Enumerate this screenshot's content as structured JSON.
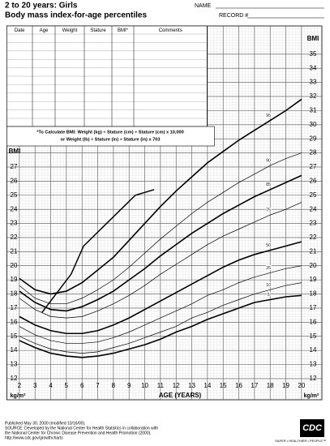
{
  "chart_data": {
    "type": "line",
    "title": "2 to 20 years: Girls",
    "subtitle": "Body mass index-for-age percentiles",
    "x_label": "AGE (YEARS)",
    "y_label": "BMI",
    "y_unit": "kg/m²",
    "x": [
      2,
      3,
      4,
      5,
      6,
      7,
      8,
      9,
      10,
      11,
      12,
      13,
      14,
      15,
      16,
      17,
      18,
      19,
      20
    ],
    "xlim": [
      1.2,
      21.3
    ],
    "xticks": [
      2,
      3,
      4,
      5,
      6,
      7,
      8,
      9,
      10,
      11,
      12,
      13,
      14,
      15,
      16,
      17,
      18,
      19,
      20
    ],
    "ylim": [
      10.5,
      37
    ],
    "yticks": [
      12,
      13,
      14,
      15,
      16,
      17,
      18,
      19,
      20,
      21,
      22,
      23,
      24,
      25,
      26,
      27,
      28,
      29,
      30,
      31,
      32,
      33,
      34,
      35
    ],
    "yticks_left": [
      12,
      13,
      14,
      15,
      16,
      17,
      18,
      19,
      20,
      21,
      22,
      23,
      24,
      25,
      26,
      27
    ],
    "grid": true,
    "series": [
      {
        "name": "95",
        "color": "#000000",
        "values": [
          19.1,
          18.3,
          18.0,
          18.2,
          18.8,
          19.7,
          20.6,
          21.8,
          23.0,
          24.2,
          25.3,
          26.3,
          27.3,
          28.1,
          28.9,
          29.6,
          30.3,
          31.0,
          31.8
        ]
      },
      {
        "name": "90",
        "color": "#000000",
        "values": [
          18.6,
          17.7,
          17.3,
          17.3,
          17.7,
          18.3,
          19.0,
          19.9,
          20.9,
          21.9,
          22.8,
          23.7,
          24.5,
          25.2,
          25.9,
          26.5,
          27.1,
          27.6,
          28.0
        ]
      },
      {
        "name": "85",
        "color": "#000000",
        "values": [
          18.2,
          17.4,
          16.9,
          16.8,
          17.1,
          17.6,
          18.2,
          19.0,
          19.8,
          20.7,
          21.5,
          22.3,
          23.0,
          23.7,
          24.3,
          24.9,
          25.4,
          25.9,
          26.4
        ]
      },
      {
        "name": "75",
        "color": "#000000",
        "values": [
          17.7,
          16.9,
          16.4,
          16.3,
          16.4,
          16.8,
          17.3,
          17.9,
          18.6,
          19.4,
          20.1,
          20.8,
          21.5,
          22.1,
          22.6,
          23.1,
          23.6,
          24.0,
          24.5
        ]
      },
      {
        "name": "50",
        "color": "#000000",
        "values": [
          16.4,
          15.8,
          15.4,
          15.2,
          15.2,
          15.4,
          15.8,
          16.3,
          16.9,
          17.5,
          18.1,
          18.7,
          19.3,
          19.9,
          20.4,
          20.8,
          21.1,
          21.4,
          21.7
        ]
      },
      {
        "name": "25",
        "color": "#000000",
        "values": [
          15.7,
          15.1,
          14.7,
          14.5,
          14.5,
          14.6,
          14.9,
          15.3,
          15.8,
          16.3,
          16.8,
          17.3,
          17.9,
          18.3,
          18.8,
          19.2,
          19.5,
          19.8,
          20.0
        ]
      },
      {
        "name": "10",
        "color": "#000000",
        "values": [
          15.0,
          14.5,
          14.1,
          13.9,
          13.8,
          13.9,
          14.2,
          14.5,
          14.9,
          15.3,
          15.7,
          16.3,
          16.7,
          17.2,
          17.6,
          18.0,
          18.3,
          18.6,
          18.8
        ]
      },
      {
        "name": "5",
        "color": "#000000",
        "values": [
          14.7,
          14.2,
          13.8,
          13.6,
          13.5,
          13.6,
          13.8,
          14.1,
          14.4,
          14.8,
          15.3,
          15.7,
          16.2,
          16.6,
          17.0,
          17.4,
          17.6,
          17.8,
          17.9
        ]
      }
    ],
    "patient": {
      "color": "#000000",
      "x": [
        3.45,
        5.3,
        6.1,
        9.4,
        10.6
      ],
      "values": [
        16.7,
        19.4,
        21.4,
        25.0,
        25.4
      ]
    }
  },
  "form": {
    "name_label": "NAME",
    "record_label": "RECORD #",
    "table_headers": [
      "Date",
      "Age",
      "Weight",
      "Stature",
      "BMI*",
      "Comments"
    ],
    "calc_lines": [
      "*To Calculate BMI: Weight (kg) ÷ Stature (cm) ÷ Stature (cm) x 10,000",
      "or Weight (lb) ÷ Stature (in) ÷ Stature (in) x 703"
    ]
  },
  "footer": {
    "lines": [
      "Published May 30, 2000 (modified 10/16/00).",
      "SOURCE: Developed by the National Center for Health Statistics in collaboration with",
      "the National Center for Chronic Disease Prevention and Health Promotion (2000).",
      "http://www.cdc.gov/growthcharts"
    ],
    "logo": "CDC",
    "slogan": "SAFER • HEALTHIER • PEOPLE™"
  }
}
